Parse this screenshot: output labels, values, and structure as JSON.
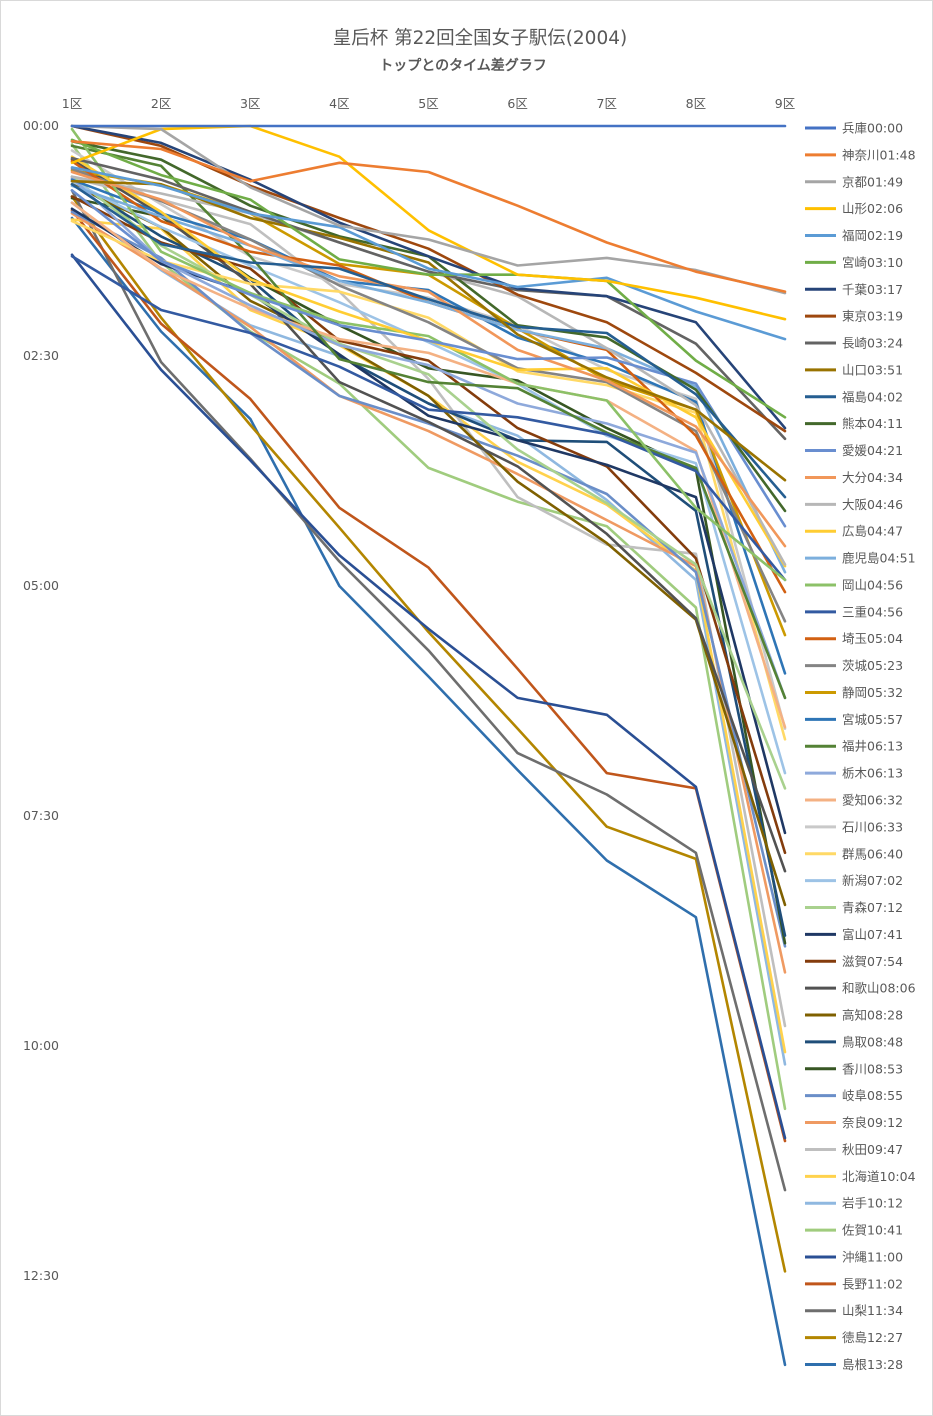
{
  "chart_data": {
    "type": "line",
    "title": "皇后杯 第22回全国女子駅伝(2004)",
    "subtitle": "トップとのタイム差グラフ",
    "categories": [
      "1区",
      "2区",
      "3区",
      "4区",
      "5区",
      "6区",
      "7区",
      "8区",
      "9区"
    ],
    "y_axis": {
      "ticks": [
        "00:00",
        "02:30",
        "05:00",
        "07:30",
        "10:00",
        "12:30"
      ],
      "tick_values_sec": [
        0,
        150,
        300,
        450,
        600,
        750
      ],
      "range_sec": [
        0,
        810
      ],
      "reversed": true,
      "gridlines": false
    },
    "x_axis_position": "top",
    "legend_position": "right",
    "series": [
      {
        "name": "兵庫00:00",
        "color": "#4472c4",
        "values": [
          0,
          0,
          0,
          0,
          0,
          0,
          0,
          0,
          0
        ]
      },
      {
        "name": "神奈川01:48",
        "color": "#ed7d31",
        "values": [
          10,
          15,
          36,
          24,
          30,
          52,
          76,
          95,
          108
        ]
      },
      {
        "name": "京都01:49",
        "color": "#a5a5a5",
        "values": [
          0,
          2,
          40,
          65,
          74,
          91,
          86,
          94,
          109
        ]
      },
      {
        "name": "山形02:06",
        "color": "#ffc000",
        "values": [
          24,
          2,
          0,
          20,
          68,
          97,
          101,
          112,
          126
        ]
      },
      {
        "name": "福岡02:19",
        "color": "#5b9bd5",
        "values": [
          27,
          39,
          57,
          66,
          93,
          105,
          99,
          121,
          139
        ]
      },
      {
        "name": "宮崎03:10",
        "color": "#70ad47",
        "values": [
          9,
          32,
          48,
          87,
          97,
          97,
          101,
          153,
          190
        ]
      },
      {
        "name": "千葉03:17",
        "color": "#264478",
        "values": [
          0,
          11,
          35,
          63,
          85,
          106,
          111,
          128,
          197
        ]
      },
      {
        "name": "東京03:19",
        "color": "#9e480e",
        "values": [
          0,
          13,
          39,
          60,
          80,
          110,
          128,
          161,
          199
        ]
      },
      {
        "name": "長崎03:24",
        "color": "#636363",
        "values": [
          21,
          35,
          56,
          76,
          95,
          107,
          111,
          142,
          204
        ]
      },
      {
        "name": "山口03:51",
        "color": "#997300",
        "values": [
          36,
          38,
          60,
          73,
          89,
          136,
          164,
          185,
          231
        ]
      },
      {
        "name": "福島04:02",
        "color": "#255e91",
        "values": [
          38,
          77,
          89,
          93,
          113,
          131,
          135,
          175,
          242
        ]
      },
      {
        "name": "熊本04:11",
        "color": "#43682b",
        "values": [
          10,
          22,
          52,
          72,
          85,
          130,
          138,
          172,
          251
        ]
      },
      {
        "name": "愛媛04:21",
        "color": "#698ed0",
        "values": [
          42,
          88,
          110,
          130,
          140,
          152,
          151,
          168,
          261
        ]
      },
      {
        "name": "大分04:34",
        "color": "#f1975a",
        "values": [
          30,
          48,
          78,
          98,
          108,
          146,
          166,
          196,
          274
        ]
      },
      {
        "name": "大阪04:46",
        "color": "#b7b7b7",
        "values": [
          33,
          44,
          57,
          76,
          95,
          111,
          145,
          182,
          286
        ]
      },
      {
        "name": "広島04:47",
        "color": "#ffcd33",
        "values": [
          20,
          56,
          100,
          121,
          140,
          159,
          158,
          190,
          287
        ]
      },
      {
        "name": "鹿児島04:51",
        "color": "#7cafdd",
        "values": [
          39,
          59,
          78,
          101,
          115,
          133,
          145,
          170,
          291
        ]
      },
      {
        "name": "岡山04:56",
        "color": "#8cc168",
        "values": [
          2,
          82,
          109,
          128,
          137,
          168,
          179,
          249,
          296
        ]
      },
      {
        "name": "三重04:56",
        "color": "#335aa1",
        "values": [
          85,
          120,
          135,
          157,
          185,
          190,
          201,
          225,
          296
        ]
      },
      {
        "name": "埼玉05:04",
        "color": "#d26012",
        "values": [
          23,
          62,
          82,
          91,
          115,
          133,
          146,
          202,
          304
        ]
      },
      {
        "name": "茨城05:23",
        "color": "#848484",
        "values": [
          28,
          49,
          74,
          104,
          128,
          158,
          167,
          199,
          323
        ]
      },
      {
        "name": "静岡05:32",
        "color": "#cc9a00",
        "values": [
          29,
          38,
          57,
          90,
          97,
          132,
          166,
          185,
          332
        ]
      },
      {
        "name": "宮城05:57",
        "color": "#2e75b6",
        "values": [
          35,
          57,
          74,
          101,
          107,
          138,
          155,
          180,
          357
        ]
      },
      {
        "name": "福井06:13",
        "color": "#548235",
        "values": [
          13,
          26,
          85,
          152,
          167,
          171,
          200,
          223,
          373
        ]
      },
      {
        "name": "栃木06:13",
        "color": "#8ea9db",
        "values": [
          34,
          88,
          117,
          143,
          156,
          181,
          194,
          213,
          373
        ]
      },
      {
        "name": "愛知06:32",
        "color": "#f4b183",
        "values": [
          50,
          93,
          119,
          139,
          148,
          168,
          179,
          212,
          392
        ]
      },
      {
        "name": "石川06:33",
        "color": "#c9c9c9",
        "values": [
          16,
          51,
          85,
          103,
          112,
          130,
          159,
          178,
          393
        ]
      },
      {
        "name": "群馬06:40",
        "color": "#ffd966",
        "values": [
          62,
          88,
          103,
          108,
          125,
          160,
          169,
          187,
          400
        ]
      },
      {
        "name": "新潟07:02",
        "color": "#9dc3e6",
        "values": [
          36,
          66,
          91,
          115,
          141,
          168,
          202,
          220,
          422
        ]
      },
      {
        "name": "青森07:12",
        "color": "#a9d18e",
        "values": [
          33,
          78,
          110,
          142,
          162,
          211,
          246,
          286,
          432
        ]
      },
      {
        "name": "富山07:41",
        "color": "#1f3864",
        "values": [
          54,
          90,
          109,
          149,
          189,
          205,
          221,
          242,
          461
        ]
      },
      {
        "name": "滋賀07:54",
        "color": "#843c0c",
        "values": [
          46,
          76,
          93,
          140,
          153,
          197,
          222,
          282,
          474
        ]
      },
      {
        "name": "和歌山08:06",
        "color": "#525252",
        "values": [
          22,
          58,
          103,
          167,
          193,
          222,
          266,
          321,
          486
        ]
      },
      {
        "name": "高知08:28",
        "color": "#7f6000",
        "values": [
          38,
          66,
          114,
          142,
          176,
          232,
          272,
          322,
          508
        ]
      },
      {
        "name": "鳥取08:48",
        "color": "#1f4e79",
        "values": [
          36,
          72,
          100,
          150,
          181,
          205,
          206,
          251,
          528
        ]
      },
      {
        "name": "香川08:53",
        "color": "#375623",
        "values": [
          47,
          59,
          99,
          130,
          158,
          166,
          197,
          224,
          533
        ]
      },
      {
        "name": "岐阜08:55",
        "color": "#6a8ec8",
        "values": [
          56,
          86,
          135,
          176,
          194,
          215,
          240,
          291,
          535
        ]
      },
      {
        "name": "奈良09:12",
        "color": "#ef9a62",
        "values": [
          57,
          93,
          131,
          176,
          199,
          227,
          257,
          287,
          552
        ]
      },
      {
        "name": "秋田09:47",
        "color": "#bfbfbf",
        "values": [
          34,
          48,
          64,
          108,
          165,
          242,
          273,
          279,
          587
        ]
      },
      {
        "name": "北海道10:04",
        "color": "#ffd24d",
        "values": [
          61,
          67,
          120,
          143,
          176,
          219,
          247,
          290,
          604
        ]
      },
      {
        "name": "岩手10:12",
        "color": "#8fb8e0",
        "values": [
          50,
          94,
          130,
          150,
          181,
          202,
          244,
          296,
          612
        ]
      },
      {
        "name": "佐賀10:41",
        "color": "#a0cc7e",
        "values": [
          12,
          89,
          134,
          168,
          223,
          245,
          261,
          314,
          641
        ]
      },
      {
        "name": "沖縄11:00",
        "color": "#2a4f94",
        "values": [
          84,
          159,
          218,
          280,
          328,
          373,
          384,
          431,
          660
        ]
      },
      {
        "name": "長野11:02",
        "color": "#c0561b",
        "values": [
          55,
          129,
          178,
          249,
          288,
          354,
          422,
          432,
          662
        ]
      },
      {
        "name": "山梨11:34",
        "color": "#6e6e6e",
        "values": [
          42,
          154,
          217,
          284,
          342,
          409,
          436,
          474,
          694
        ]
      },
      {
        "name": "徳島12:27",
        "color": "#b38600",
        "values": [
          46,
          125,
          195,
          262,
          330,
          393,
          457,
          478,
          747
        ]
      },
      {
        "name": "島根13:28",
        "color": "#2f6fad",
        "values": [
          60,
          134,
          191,
          300,
          359,
          420,
          479,
          516,
          808
        ]
      }
    ]
  }
}
